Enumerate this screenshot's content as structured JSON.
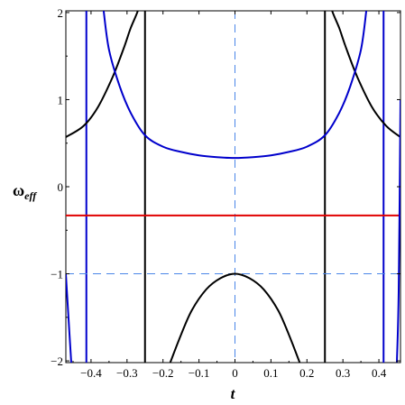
{
  "chart_data": {
    "type": "line",
    "xlabel": "t",
    "ylabel_main": "ω",
    "ylabel_sub": "eff",
    "xlim": [
      -0.47,
      0.46
    ],
    "ylim": [
      -2.02,
      2.02
    ],
    "x_ticks": [
      -0.4,
      -0.3,
      -0.2,
      -0.1,
      0,
      0.1,
      0.2,
      0.3,
      0.4
    ],
    "x_tick_labels": [
      "−0.4",
      "−0.3",
      "−0.2",
      "−0.1",
      "0",
      "0.1",
      "0.2",
      "0.3",
      "0.4"
    ],
    "y_ticks": [
      -2,
      -1,
      0,
      1,
      2
    ],
    "y_tick_labels": [
      "−2",
      "−1",
      "0",
      "1",
      "2"
    ],
    "grid": false,
    "colors": {
      "black_curve": "#000000",
      "blue_curve": "#0000cc",
      "constant_line": "#e00000",
      "reference_lines": "#4a86e8"
    },
    "series": [
      {
        "style": "black solid",
        "segments": [
          {
            "x": [
              -0.47,
              -0.42,
              -0.38,
              -0.34,
              -0.31,
              -0.29,
              -0.27,
              -0.26,
              -0.255
            ],
            "y": [
              0.57,
              0.7,
              0.92,
              1.26,
              1.58,
              1.82,
              2.02,
              2.2,
              2.4
            ]
          },
          {
            "x": [
              -0.18,
              -0.15,
              -0.12,
              -0.08,
              -0.04,
              0,
              0.04,
              0.08,
              0.12,
              0.15,
              0.18
            ],
            "y": [
              -2.02,
              -1.7,
              -1.42,
              -1.18,
              -1.05,
              -1.0,
              -1.05,
              -1.18,
              -1.42,
              -1.7,
              -2.02
            ]
          },
          {
            "x": [
              0.255,
              0.26,
              0.27,
              0.29,
              0.31,
              0.34,
              0.38,
              0.42,
              0.46
            ],
            "y": [
              2.4,
              2.2,
              2.02,
              1.82,
              1.58,
              1.26,
              0.92,
              0.7,
              0.57
            ]
          }
        ]
      },
      {
        "style": "blue solid",
        "segments": [
          {
            "x": [
              -0.365,
              -0.35,
              -0.32,
              -0.29,
              -0.25,
              -0.2,
              -0.15,
              -0.1,
              -0.05,
              0,
              0.05,
              0.1,
              0.15,
              0.2,
              0.25,
              0.29,
              0.32,
              0.35,
              0.365
            ],
            "y": [
              2.02,
              1.57,
              1.15,
              0.85,
              0.59,
              0.46,
              0.4,
              0.36,
              0.34,
              0.33,
              0.34,
              0.36,
              0.4,
              0.46,
              0.59,
              0.85,
              1.15,
              1.57,
              2.02
            ]
          },
          {
            "x": [
              -0.47,
              -0.462,
              -0.455
            ],
            "y": [
              -1.0,
              -1.55,
              -2.02
            ]
          },
          {
            "x": [
              0.45,
              0.455,
              0.46
            ],
            "y": [
              -2.02,
              -1.2,
              1.0
            ]
          }
        ]
      }
    ],
    "vertical_lines": [
      {
        "x": -0.413,
        "style": "blue solid"
      },
      {
        "x": 0.413,
        "style": "blue solid"
      },
      {
        "x": -0.25,
        "style": "black solid"
      },
      {
        "x": 0.25,
        "style": "black solid"
      },
      {
        "x": 0,
        "style": "light-blue dashed"
      }
    ],
    "horizontal_lines": [
      {
        "y": -0.33,
        "style": "red solid"
      },
      {
        "y": -1.0,
        "style": "light-blue dashed"
      }
    ]
  }
}
